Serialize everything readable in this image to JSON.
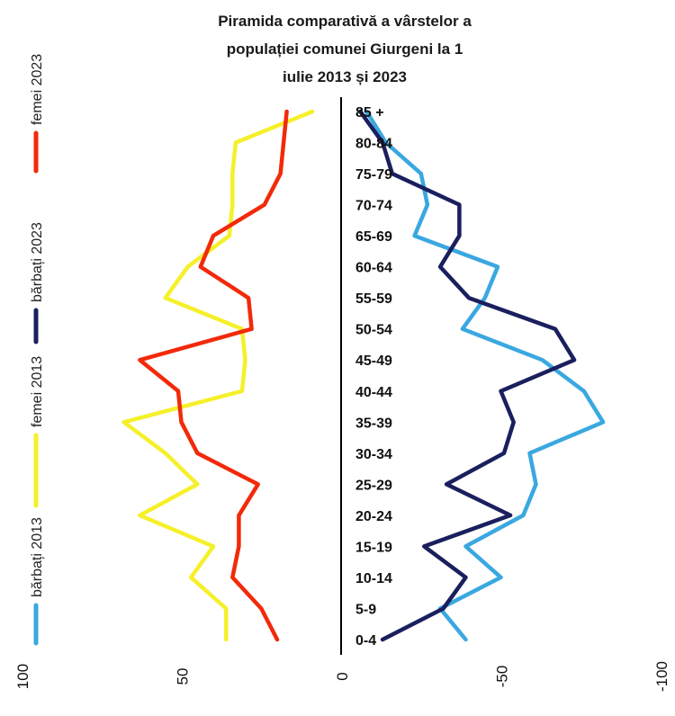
{
  "chart_data": {
    "type": "line",
    "title_lines": [
      "Piramida comparativă a vârstelor a",
      "populației comunei Giurgeni la 1",
      "iulie 2013 și 2023"
    ],
    "categories": [
      "0-4",
      "5-9",
      "10-14",
      "15-19",
      "20-24",
      "25-29",
      "30-34",
      "35-39",
      "40-44",
      "45-49",
      "50-54",
      "55-59",
      "60-64",
      "65-69",
      "70-74",
      "75-79",
      "80-84",
      "85 +"
    ],
    "x_ticks": [
      100,
      50,
      0,
      -50,
      -100
    ],
    "xlim": [
      100,
      -100
    ],
    "grid": false,
    "legend_position": "left",
    "series": [
      {
        "name": "bărbați 2013",
        "color": "#3aa8e0",
        "values": [
          -39,
          -31,
          -50,
          -39,
          -57,
          -61,
          -59,
          -82,
          -76,
          -63,
          -38,
          -45,
          -49,
          -23,
          -27,
          -25,
          -14,
          -8
        ]
      },
      {
        "name": "femei 2013",
        "color": "#f5f02a",
        "values": [
          36,
          36,
          47,
          40,
          63,
          45,
          55,
          68,
          31,
          30,
          31,
          55,
          48,
          35,
          34,
          34,
          33,
          9
        ]
      },
      {
        "name": "bărbați 2023",
        "color": "#1a1f5e",
        "values": [
          -13,
          -32,
          -39,
          -26,
          -53,
          -33,
          -51,
          -54,
          -50,
          -73,
          -67,
          -40,
          -31,
          -37,
          -37,
          -16,
          -13,
          -6
        ]
      },
      {
        "name": "femei 2023",
        "color": "#f22a0a",
        "values": [
          20,
          25,
          34,
          32,
          32,
          26,
          45,
          50,
          51,
          63,
          28,
          29,
          44,
          40,
          24,
          19,
          18,
          17
        ]
      }
    ]
  },
  "legend": [
    {
      "label": "bărbați 2013",
      "color": "#3aa8e0"
    },
    {
      "label": "femei 2013",
      "color": "#f5f02a"
    },
    {
      "label": "bărbați 2023",
      "color": "#1a1f5e"
    },
    {
      "label": "femei 2023",
      "color": "#f22a0a"
    }
  ]
}
